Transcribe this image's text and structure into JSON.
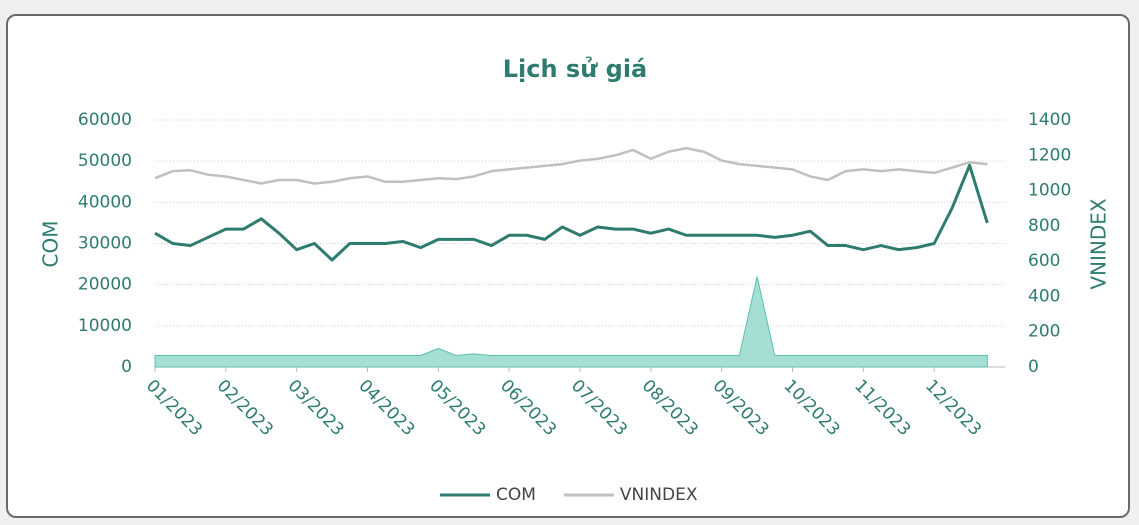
{
  "chart_data": {
    "type": "line",
    "title": "Lịch sử giá",
    "y_label": "COM",
    "y2_label": "VNINDEX",
    "categories": [
      "01/2023",
      null,
      null,
      null,
      "02/2023",
      null,
      null,
      null,
      "03/2023",
      null,
      null,
      null,
      "04/2023",
      null,
      null,
      null,
      "05/2023",
      null,
      null,
      null,
      "06/2023",
      null,
      null,
      null,
      "07/2023",
      null,
      null,
      null,
      "08/2023",
      null,
      null,
      null,
      "09/2023",
      null,
      null,
      null,
      "10/2023",
      null,
      null,
      null,
      "11/2023",
      null,
      null,
      null,
      "12/2023",
      null,
      null,
      null
    ],
    "series": [
      {
        "name": "COM",
        "color": "#2e7b70",
        "values": [
          32500,
          30000,
          29500,
          31500,
          33500,
          33500,
          36000,
          32500,
          28500,
          30000,
          26000,
          30000,
          30000,
          30000,
          30500,
          29000,
          31000,
          31000,
          31000,
          29500,
          32000,
          32000,
          31000,
          34000,
          32000,
          34000,
          33500,
          33500,
          32500,
          33500,
          32000,
          32000,
          32000,
          32000,
          32000,
          31500,
          32000,
          33000,
          29500,
          29500,
          28500,
          29500,
          28500,
          29000,
          30000,
          38500,
          49000,
          35000
        ]
      },
      {
        "name": "VNINDEX",
        "color": "#c0c0c0",
        "axis": "y2",
        "values": [
          1070,
          1110,
          1115,
          1090,
          1080,
          1060,
          1040,
          1060,
          1060,
          1040,
          1050,
          1070,
          1080,
          1050,
          1050,
          1060,
          1070,
          1065,
          1080,
          1110,
          1120,
          1130,
          1140,
          1150,
          1170,
          1180,
          1200,
          1230,
          1180,
          1220,
          1240,
          1220,
          1170,
          1150,
          1140,
          1130,
          1120,
          1080,
          1060,
          1110,
          1120,
          1110,
          1120,
          1110,
          1100,
          1130,
          1160,
          1150
        ]
      },
      {
        "type": "area",
        "color": "#7fd1c0",
        "values": [
          2800,
          2800,
          2800,
          2800,
          2800,
          2800,
          2800,
          2800,
          2800,
          2800,
          2800,
          2800,
          2800,
          2800,
          2800,
          2800,
          4500,
          2800,
          3200,
          2800,
          2800,
          2800,
          2800,
          2800,
          2800,
          2800,
          2800,
          2800,
          2800,
          2800,
          2800,
          2800,
          2800,
          2800,
          22000,
          2800,
          2800,
          2800,
          2800,
          2800,
          2800,
          2800,
          2800,
          2800,
          2800,
          2800,
          2800,
          2800
        ]
      }
    ],
    "ylim": [
      0,
      60000
    ],
    "yticks": [
      0,
      10000,
      20000,
      30000,
      40000,
      50000,
      60000
    ],
    "y2lim": [
      0,
      1400
    ],
    "y2ticks": [
      0,
      200,
      400,
      600,
      800,
      1000,
      1200,
      1400
    ],
    "grid": true,
    "legend": "bottom"
  }
}
